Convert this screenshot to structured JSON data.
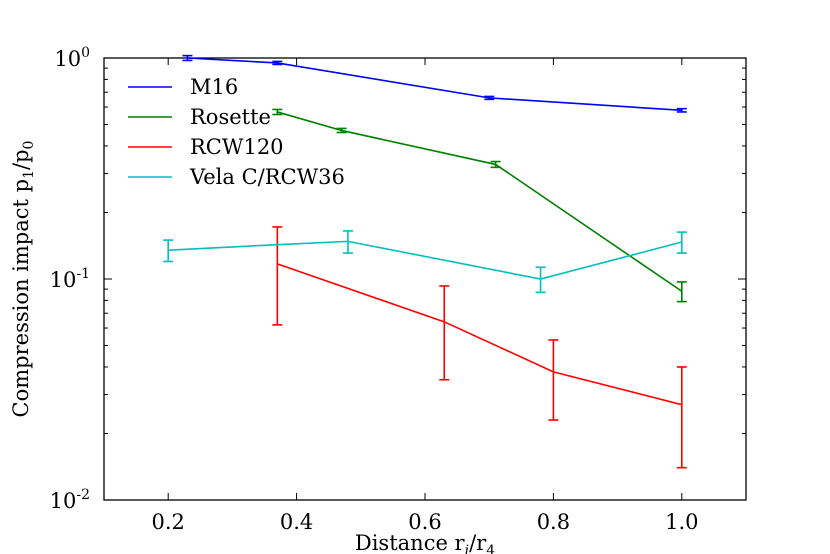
{
  "chart_data": {
    "type": "line",
    "title": "",
    "xlabel": "Distance r",
    "xlabel_sub": "i",
    "xlabel_mid": "/r",
    "xlabel_sub2": "4",
    "ylabel": "Compression impact p",
    "ylabel_sub": "1",
    "ylabel_mid": "/p",
    "ylabel_sub2": "0",
    "xlim": [
      0.1,
      1.1
    ],
    "ylim": [
      0.01,
      1.0
    ],
    "yscale": "log",
    "grid": false,
    "legend_position": "top-left",
    "xticks": [
      "0.2",
      "0.4",
      "0.6",
      "0.8",
      "1.0"
    ],
    "xtick_values": [
      0.2,
      0.4,
      0.6,
      0.8,
      1.0
    ],
    "yticks": [
      {
        "base": "10",
        "exp": "0",
        "value": 1.0
      },
      {
        "base": "10",
        "exp": "-1",
        "value": 0.1
      },
      {
        "base": "10",
        "exp": "-2",
        "value": 0.01
      }
    ],
    "series": [
      {
        "name": "M16",
        "color": "#0000ff",
        "x": [
          0.23,
          0.37,
          0.7,
          1.0
        ],
        "y": [
          1.0,
          0.95,
          0.66,
          0.58
        ],
        "err": [
          0.025,
          0.015,
          0.01,
          0.01
        ]
      },
      {
        "name": "Rosette",
        "color": "#008000",
        "x": [
          0.37,
          0.47,
          0.71,
          1.0
        ],
        "y": [
          0.57,
          0.47,
          0.33,
          0.088
        ],
        "err": [
          0.015,
          0.01,
          0.01,
          0.009
        ]
      },
      {
        "name": "RCW120",
        "color": "#ff0000",
        "x": [
          0.37,
          0.63,
          0.8,
          1.0
        ],
        "y": [
          0.117,
          0.064,
          0.038,
          0.027
        ],
        "err_low": [
          0.055,
          0.029,
          0.015,
          0.013
        ],
        "err_high": [
          0.055,
          0.029,
          0.015,
          0.013
        ]
      },
      {
        "name": "Vela C/RCW36",
        "color": "#00bfbf",
        "x": [
          0.2,
          0.37,
          0.48,
          0.78,
          1.0
        ],
        "y": [
          0.135,
          0.143,
          0.148,
          0.1,
          0.147
        ],
        "err": [
          0.015,
          0.0,
          0.017,
          0.013,
          0.016
        ]
      }
    ]
  }
}
